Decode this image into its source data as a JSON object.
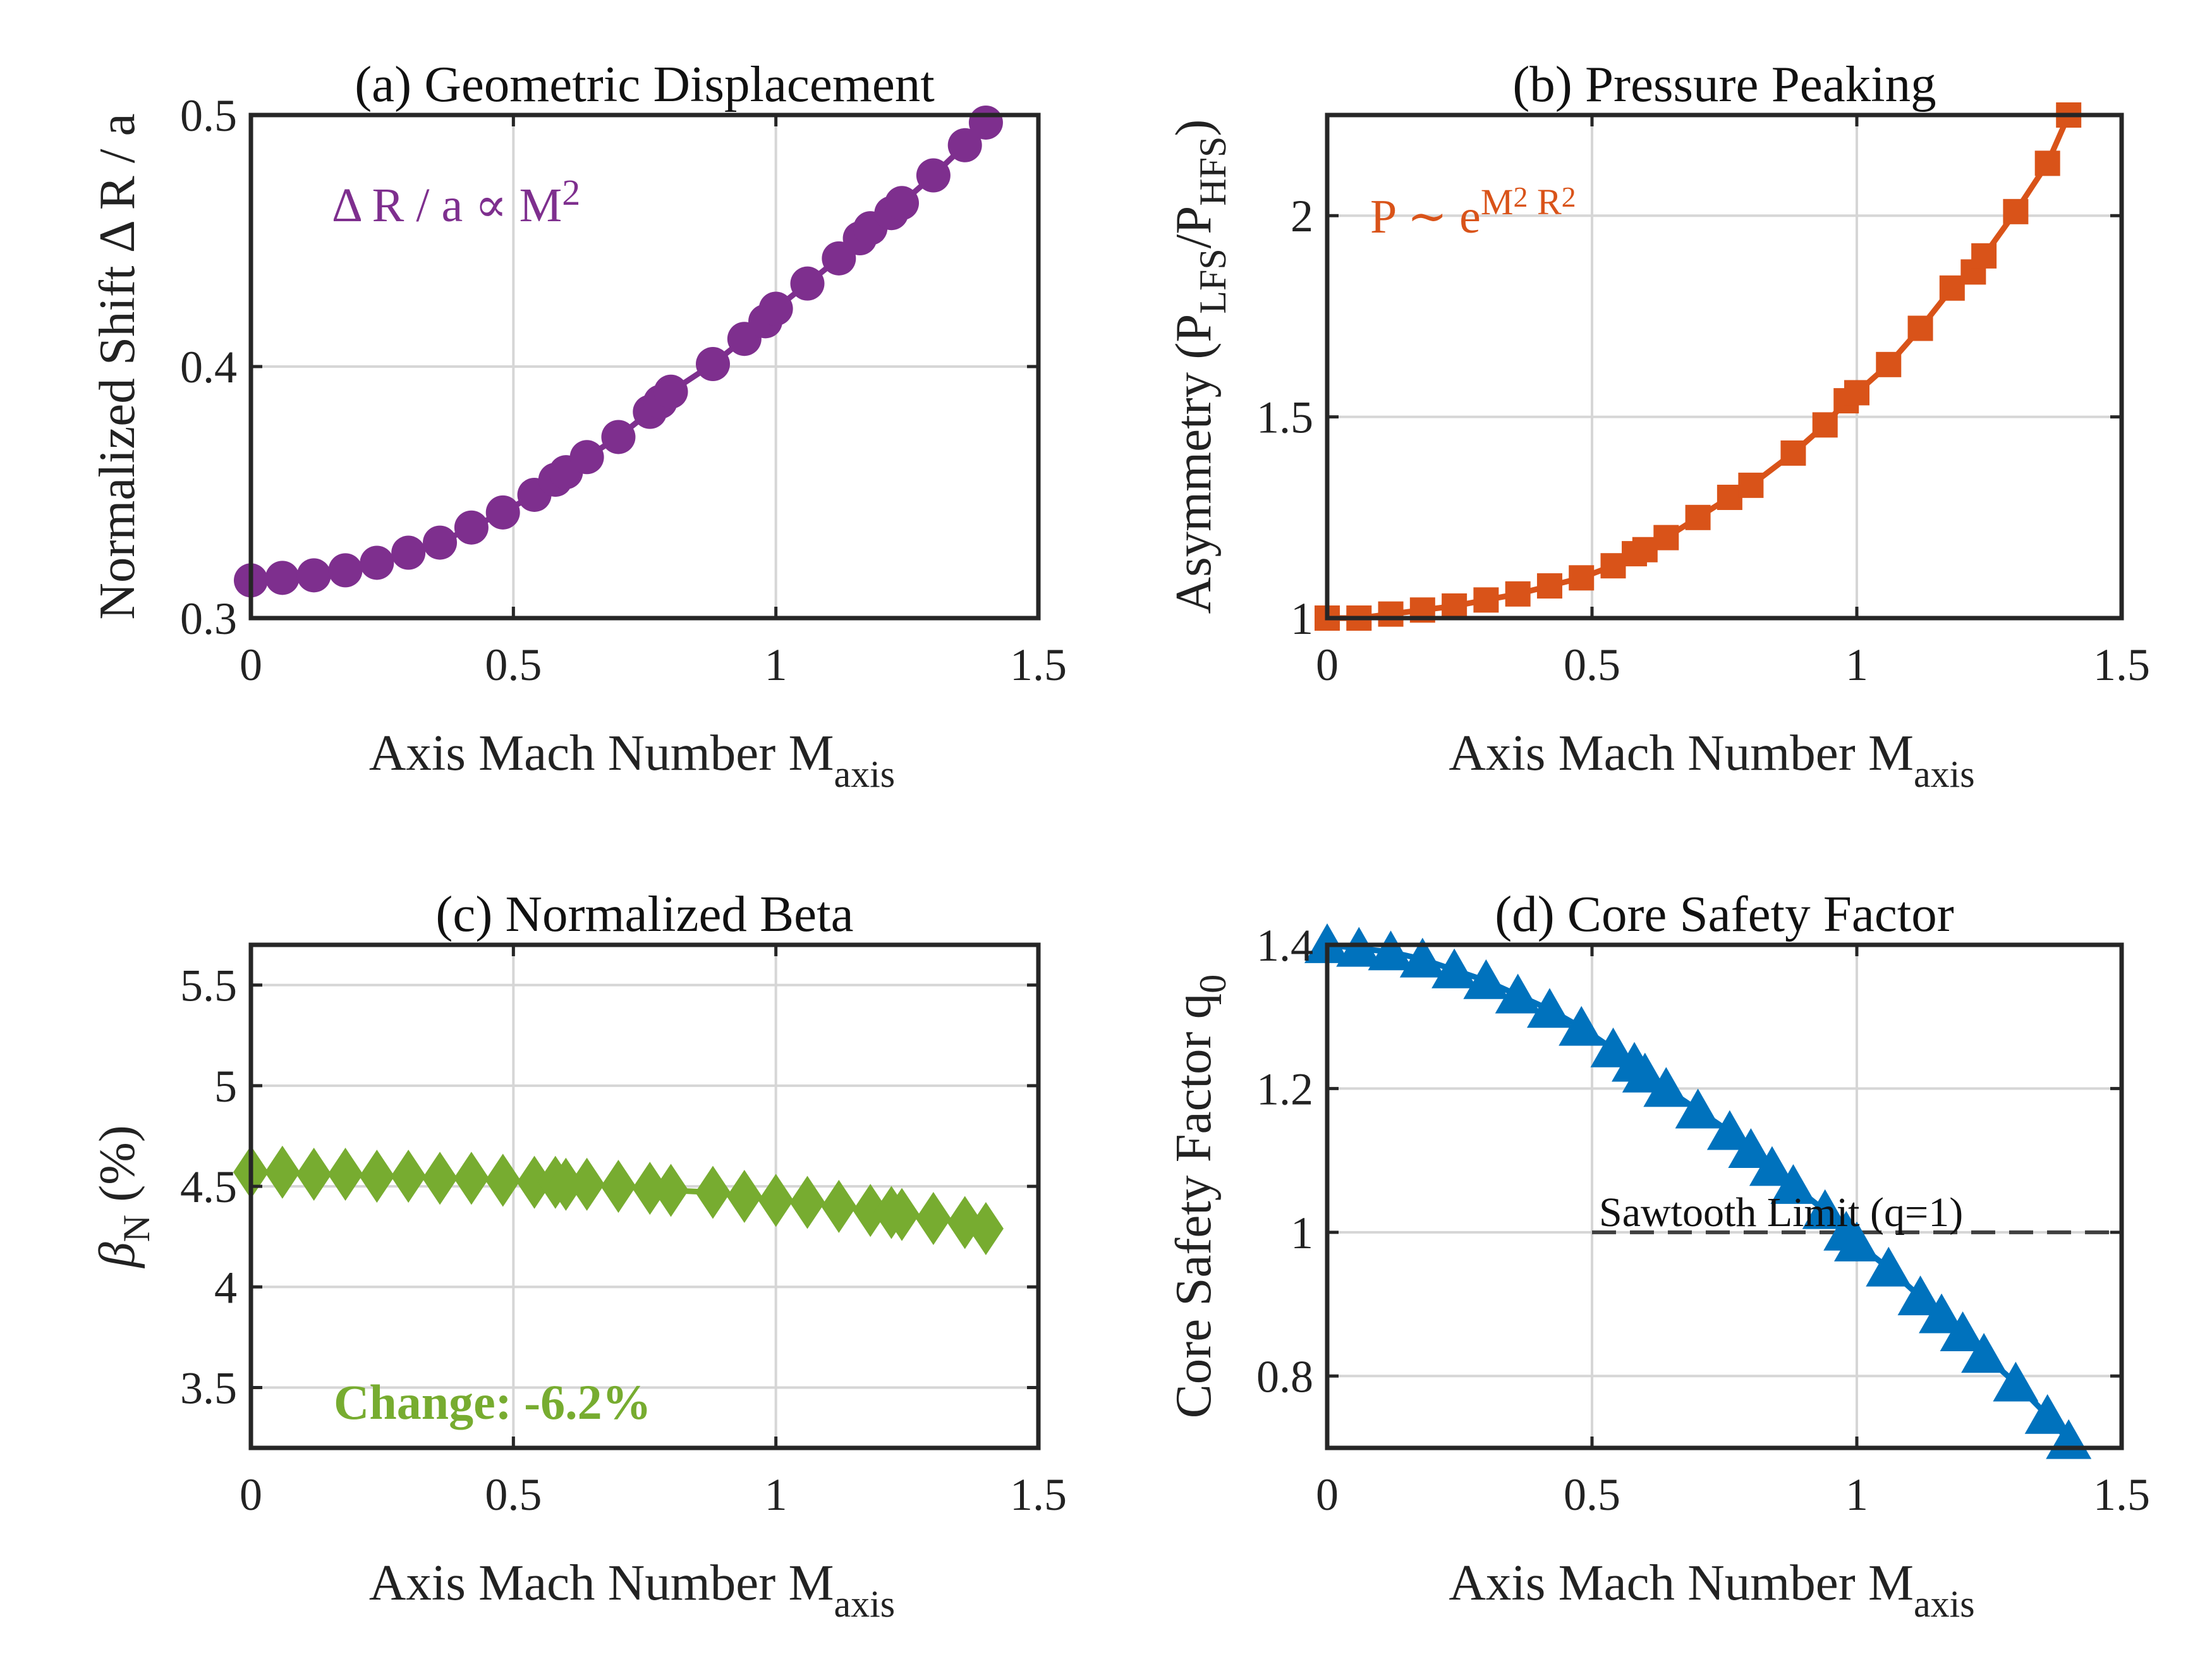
{
  "chart_data": [
    {
      "id": "a",
      "type": "scatter",
      "title": "(a) Geometric Displacement",
      "xlabel": "Axis Mach Number M",
      "xlabel_sub": "axis",
      "ylabel": "Normalized Shift Δ R / a",
      "xlim": [
        0,
        1.5
      ],
      "ylim": [
        0.3,
        0.5
      ],
      "xticks": [
        0,
        0.5,
        1,
        1.5
      ],
      "xtick_labels": [
        "0",
        "0.5",
        "1",
        "1.5"
      ],
      "yticks": [
        0.3,
        0.4,
        0.5
      ],
      "ytick_labels": [
        "0.3",
        "0.4",
        "0.5"
      ],
      "grid": true,
      "annotation": {
        "text": "Δ R / a ∝ M",
        "sup": "2",
        "color": "#7E2F8E"
      },
      "series": [
        {
          "name": "ΔR/a",
          "marker": "circle",
          "line": true,
          "color": "#7E2F8E",
          "x": [
            0,
            0.06,
            0.12,
            0.18,
            0.24,
            0.3,
            0.36,
            0.42,
            0.48,
            0.54,
            0.58,
            0.6,
            0.64,
            0.7,
            0.76,
            0.78,
            0.8,
            0.88,
            0.94,
            0.98,
            1.0,
            1.06,
            1.12,
            1.16,
            1.18,
            1.22,
            1.24,
            1.3,
            1.36,
            1.4
          ],
          "y": [
            0.315,
            0.316,
            0.317,
            0.319,
            0.322,
            0.326,
            0.33,
            0.336,
            0.342,
            0.349,
            0.355,
            0.358,
            0.364,
            0.372,
            0.382,
            0.386,
            0.39,
            0.401,
            0.411,
            0.418,
            0.423,
            0.433,
            0.443,
            0.451,
            0.455,
            0.461,
            0.465,
            0.476,
            0.488,
            0.497
          ]
        }
      ]
    },
    {
      "id": "b",
      "type": "line",
      "title": "(b) Pressure Peaking",
      "xlabel": "Axis Mach Number M",
      "xlabel_sub": "axis",
      "ylabel": "Asymmetry (P",
      "ylabel_sub1": "LFS",
      "ylabel_mid": "/P",
      "ylabel_sub2": "HFS",
      "ylabel_end": ")",
      "xlim": [
        0,
        1.5
      ],
      "ylim": [
        1,
        2.25
      ],
      "xticks": [
        0,
        0.5,
        1,
        1.5
      ],
      "xtick_labels": [
        "0",
        "0.5",
        "1",
        "1.5"
      ],
      "yticks": [
        1,
        1.5,
        2
      ],
      "ytick_labels": [
        "1",
        "1.5",
        "2"
      ],
      "grid": true,
      "annotation": {
        "text": "P ∼ e",
        "sup": "M",
        "sup2": "2",
        "mid": "R",
        "sup3": "2",
        "color": "#D95319"
      },
      "reference_line": {
        "y": 1,
        "style": "dashed",
        "color": "#000000"
      },
      "series": [
        {
          "name": "Asymmetry",
          "marker": "square",
          "line": true,
          "color": "#D95319",
          "x": [
            0,
            0.06,
            0.12,
            0.18,
            0.24,
            0.3,
            0.36,
            0.42,
            0.48,
            0.54,
            0.58,
            0.6,
            0.64,
            0.7,
            0.76,
            0.8,
            0.88,
            0.94,
            0.98,
            1.0,
            1.06,
            1.12,
            1.18,
            1.22,
            1.24,
            1.3,
            1.36,
            1.4
          ],
          "y": [
            1.0,
            1.0,
            1.01,
            1.02,
            1.03,
            1.045,
            1.06,
            1.08,
            1.1,
            1.13,
            1.16,
            1.17,
            1.2,
            1.25,
            1.3,
            1.33,
            1.41,
            1.48,
            1.54,
            1.56,
            1.63,
            1.72,
            1.82,
            1.86,
            1.9,
            2.01,
            2.13,
            2.25
          ]
        }
      ]
    },
    {
      "id": "c",
      "type": "scatter",
      "title": "(c) Normalized Beta",
      "xlabel": "Axis Mach Number M",
      "xlabel_sub": "axis",
      "ylabel": "β",
      "ylabel_sub1": "N",
      "ylabel_end": " (%)",
      "xlim": [
        0,
        1.5
      ],
      "ylim": [
        3.2,
        5.7
      ],
      "xticks": [
        0,
        0.5,
        1,
        1.5
      ],
      "xtick_labels": [
        "0",
        "0.5",
        "1",
        "1.5"
      ],
      "yticks": [
        3.5,
        4,
        4.5,
        5,
        5.5
      ],
      "ytick_labels": [
        "3.5",
        "4",
        "4.5",
        "5",
        "5.5"
      ],
      "grid": true,
      "annotation": {
        "text": "Change: -6.2%",
        "color": "#77AC30"
      },
      "series": [
        {
          "name": "βN",
          "marker": "diamond",
          "line": true,
          "color": "#77AC30",
          "x": [
            0,
            0.06,
            0.12,
            0.18,
            0.24,
            0.3,
            0.36,
            0.42,
            0.48,
            0.54,
            0.58,
            0.6,
            0.64,
            0.7,
            0.76,
            0.8,
            0.88,
            0.94,
            1.0,
            1.06,
            1.12,
            1.18,
            1.22,
            1.24,
            1.3,
            1.36,
            1.4
          ],
          "y": [
            4.57,
            4.57,
            4.56,
            4.56,
            4.55,
            4.55,
            4.54,
            4.54,
            4.53,
            4.52,
            4.52,
            4.51,
            4.51,
            4.5,
            4.49,
            4.48,
            4.47,
            4.45,
            4.43,
            4.42,
            4.4,
            4.38,
            4.37,
            4.36,
            4.34,
            4.32,
            4.29
          ]
        }
      ]
    },
    {
      "id": "d",
      "type": "line",
      "title": "(d) Core Safety Factor",
      "xlabel": "Axis Mach Number M",
      "xlabel_sub": "axis",
      "ylabel": "Core Safety Factor q",
      "ylabel_sub1": "0",
      "xlim": [
        0,
        1.5
      ],
      "ylim": [
        0.7,
        1.4
      ],
      "xticks": [
        0,
        0.5,
        1,
        1.5
      ],
      "xtick_labels": [
        "0",
        "0.5",
        "1",
        "1.5"
      ],
      "yticks": [
        0.8,
        1,
        1.2,
        1.4
      ],
      "ytick_labels": [
        "0.8",
        "1",
        "1.2",
        "1.4"
      ],
      "grid": true,
      "reference_line": {
        "y": 1,
        "x_start": 0.5,
        "style": "dashed",
        "color": "#404040",
        "label": "Sawtooth Limit (q=1)"
      },
      "series": [
        {
          "name": "q0",
          "marker": "triangle",
          "line": true,
          "color": "#0072BD",
          "x": [
            0,
            0.06,
            0.12,
            0.18,
            0.24,
            0.3,
            0.36,
            0.42,
            0.48,
            0.54,
            0.58,
            0.6,
            0.64,
            0.7,
            0.76,
            0.8,
            0.84,
            0.88,
            0.94,
            0.98,
            1.0,
            1.06,
            1.12,
            1.16,
            1.2,
            1.24,
            1.3,
            1.36,
            1.4
          ],
          "y": [
            1.4,
            1.395,
            1.39,
            1.38,
            1.365,
            1.35,
            1.33,
            1.31,
            1.285,
            1.255,
            1.235,
            1.22,
            1.2,
            1.17,
            1.14,
            1.115,
            1.09,
            1.065,
            1.03,
            1.0,
            0.985,
            0.95,
            0.91,
            0.885,
            0.86,
            0.83,
            0.79,
            0.745,
            0.71
          ]
        }
      ]
    }
  ]
}
